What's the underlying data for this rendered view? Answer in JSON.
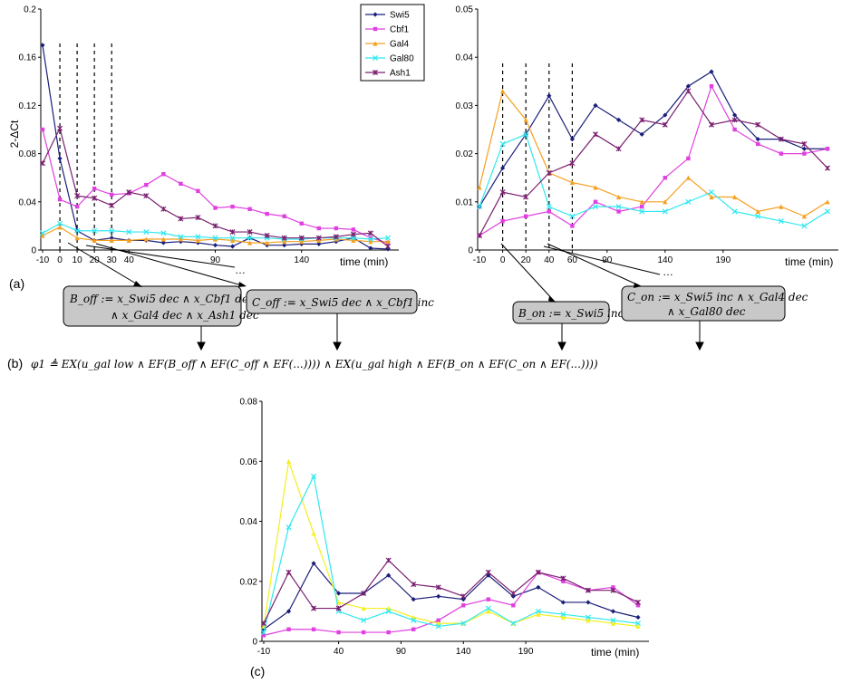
{
  "chart_data": [
    {
      "id": "a-left",
      "type": "line",
      "panel_label": "(a)",
      "ylabel": "2-ΔCt",
      "xlabel": "time (min)",
      "ylim": [
        0,
        0.2
      ],
      "yticks": [
        "0",
        "0.04",
        "0.08",
        "0.12",
        "0.16",
        "0.2"
      ],
      "xticks": [
        "-10",
        "0",
        "10",
        "20",
        "30",
        "40",
        "90",
        "140"
      ],
      "x": [
        -10,
        0,
        10,
        20,
        30,
        40,
        50,
        60,
        70,
        80,
        90,
        100,
        110,
        120,
        130,
        140,
        150,
        160,
        170,
        180,
        190
      ],
      "series": [
        {
          "name": "Swi5",
          "color": "#1b1f7a",
          "marker": "diamond",
          "values": [
            0.17,
            0.076,
            0.016,
            0.008,
            0.01,
            0.008,
            0.008,
            0.006,
            0.007,
            0.006,
            0.004,
            0.003,
            0.01,
            0.004,
            0.004,
            0.005,
            0.005,
            0.007,
            0.01,
            0.0015,
            0.0008
          ]
        },
        {
          "name": "Cbf1",
          "color": "#e040e0",
          "marker": "square",
          "values": [
            0.1,
            0.042,
            0.036,
            0.051,
            0.046,
            0.047,
            0.054,
            0.063,
            0.055,
            0.049,
            0.035,
            0.036,
            0.034,
            0.03,
            0.028,
            0.022,
            0.018,
            0.018,
            0.017,
            0.01,
            0.006
          ]
        },
        {
          "name": "Gal4",
          "color": "#f5a020",
          "marker": "triangle",
          "values": [
            0.012,
            0.019,
            0.01,
            0.008,
            0.008,
            0.008,
            0.009,
            0.009,
            0.009,
            0.008,
            0.009,
            0.008,
            0.006,
            0.006,
            0.007,
            0.007,
            0.008,
            0.009,
            0.008,
            0.007,
            0.007
          ]
        },
        {
          "name": "Gal80",
          "color": "#30e8f0",
          "marker": "x",
          "values": [
            0.014,
            0.022,
            0.016,
            0.016,
            0.016,
            0.015,
            0.015,
            0.014,
            0.011,
            0.011,
            0.01,
            0.01,
            0.01,
            0.01,
            0.009,
            0.009,
            0.01,
            0.01,
            0.01,
            0.009,
            0.01
          ]
        },
        {
          "name": "Ash1",
          "color": "#7a2070",
          "marker": "star",
          "values": [
            0.072,
            0.101,
            0.045,
            0.043,
            0.037,
            0.048,
            0.045,
            0.034,
            0.026,
            0.027,
            0.02,
            0.015,
            0.015,
            0.012,
            0.01,
            0.01,
            0.01,
            0.011,
            0.013,
            0.014,
            0.003
          ]
        }
      ],
      "annotation": "…"
    },
    {
      "id": "a-right",
      "type": "line",
      "xlabel": "time (min)",
      "ylim": [
        0,
        0.05
      ],
      "yticks": [
        "0",
        "0.01",
        "0.02",
        "0.03",
        "0.04",
        "0.05"
      ],
      "xticks": [
        "-10",
        "0",
        "20",
        "40",
        "60",
        "90",
        "140",
        "190"
      ],
      "x": [
        -10,
        0,
        20,
        40,
        60,
        80,
        100,
        120,
        140,
        160,
        180,
        200,
        220,
        240,
        260,
        280
      ],
      "series": [
        {
          "name": "Swi5",
          "color": "#1b1f7a",
          "marker": "diamond",
          "values": [
            0.009,
            0.017,
            0.024,
            0.032,
            0.023,
            0.03,
            0.027,
            0.024,
            0.028,
            0.034,
            0.037,
            0.028,
            0.023,
            0.023,
            0.021,
            0.021
          ]
        },
        {
          "name": "Cbf1",
          "color": "#e040e0",
          "marker": "square",
          "values": [
            0.003,
            0.006,
            0.007,
            0.008,
            0.005,
            0.01,
            0.008,
            0.009,
            0.015,
            0.019,
            0.034,
            0.025,
            0.022,
            0.02,
            0.02,
            0.021
          ]
        },
        {
          "name": "Gal4",
          "color": "#f5a020",
          "marker": "triangle",
          "values": [
            0.013,
            0.033,
            0.027,
            0.016,
            0.014,
            0.013,
            0.011,
            0.01,
            0.01,
            0.015,
            0.011,
            0.011,
            0.008,
            0.009,
            0.007,
            0.01
          ]
        },
        {
          "name": "Gal80",
          "color": "#30e8f0",
          "marker": "x",
          "values": [
            0.009,
            0.022,
            0.024,
            0.009,
            0.007,
            0.009,
            0.009,
            0.008,
            0.008,
            0.01,
            0.012,
            0.008,
            0.007,
            0.006,
            0.005,
            0.008
          ]
        },
        {
          "name": "Ash1",
          "color": "#7a2070",
          "marker": "star",
          "values": [
            0.003,
            0.012,
            0.011,
            0.016,
            0.018,
            0.024,
            0.021,
            0.027,
            0.026,
            0.033,
            0.026,
            0.027,
            0.026,
            0.023,
            0.022,
            0.017
          ]
        }
      ],
      "annotation": "…"
    },
    {
      "id": "c",
      "type": "line",
      "panel_label": "(c)",
      "xlabel": "time (min)",
      "ylim": [
        0,
        0.08
      ],
      "yticks": [
        "0",
        "0.02",
        "0.04",
        "0.06",
        "0.08"
      ],
      "xticks": [
        "-10",
        "40",
        "90",
        "140",
        "190"
      ],
      "x": [
        -10,
        0,
        20,
        40,
        60,
        80,
        100,
        120,
        140,
        160,
        180,
        200,
        220,
        240,
        260,
        280
      ],
      "series": [
        {
          "name": "Swi5",
          "color": "#1b1f7a",
          "marker": "diamond",
          "values": [
            0.004,
            0.01,
            0.026,
            0.016,
            0.016,
            0.022,
            0.014,
            0.015,
            0.014,
            0.022,
            0.015,
            0.018,
            0.013,
            0.013,
            0.01,
            0.008
          ]
        },
        {
          "name": "Cbf1",
          "color": "#e040e0",
          "marker": "square",
          "values": [
            0.002,
            0.004,
            0.004,
            0.003,
            0.003,
            0.003,
            0.004,
            0.007,
            0.012,
            0.014,
            0.012,
            0.023,
            0.02,
            0.017,
            0.018,
            0.012
          ]
        },
        {
          "name": "Gal4",
          "color": "#f5ef20",
          "marker": "triangle",
          "values": [
            0.005,
            0.06,
            0.036,
            0.013,
            0.011,
            0.011,
            0.008,
            0.006,
            0.006,
            0.01,
            0.006,
            0.009,
            0.008,
            0.007,
            0.006,
            0.005
          ]
        },
        {
          "name": "Gal80",
          "color": "#30e8f0",
          "marker": "x",
          "values": [
            0.003,
            0.038,
            0.055,
            0.01,
            0.007,
            0.01,
            0.007,
            0.005,
            0.006,
            0.011,
            0.006,
            0.01,
            0.009,
            0.008,
            0.007,
            0.006
          ]
        },
        {
          "name": "Ash1",
          "color": "#7a2070",
          "marker": "star",
          "values": [
            0.006,
            0.023,
            0.011,
            0.011,
            0.016,
            0.027,
            0.019,
            0.018,
            0.015,
            0.023,
            0.016,
            0.023,
            0.021,
            0.017,
            0.017,
            0.013
          ]
        }
      ]
    }
  ],
  "legend": [
    "Swi5",
    "Cbf1",
    "Gal4",
    "Gal80",
    "Ash1"
  ],
  "formulas": {
    "b_off": [
      "B_off := x_Swi5 dec ∧ x_Cbf1 dec",
      "∧ x_Gal4 dec ∧ x_Ash1 dec"
    ],
    "c_off": "C_off := x_Swi5 dec ∧ x_Cbf1 inc",
    "b_on": "B_on := x_Swi5 inc",
    "c_on": [
      "C_on := x_Swi5 inc ∧ x_Gal4 dec",
      "∧ x_Gal80 dec"
    ],
    "b_label": "(b)",
    "phi": "φ1 ≜ EX(u_gal low ∧ EF(B_off ∧ EF(C_off ∧ EF(...)))) ∧ EX(u_gal high ∧ EF(B_on ∧ EF(C_on ∧ EF(...))))"
  }
}
